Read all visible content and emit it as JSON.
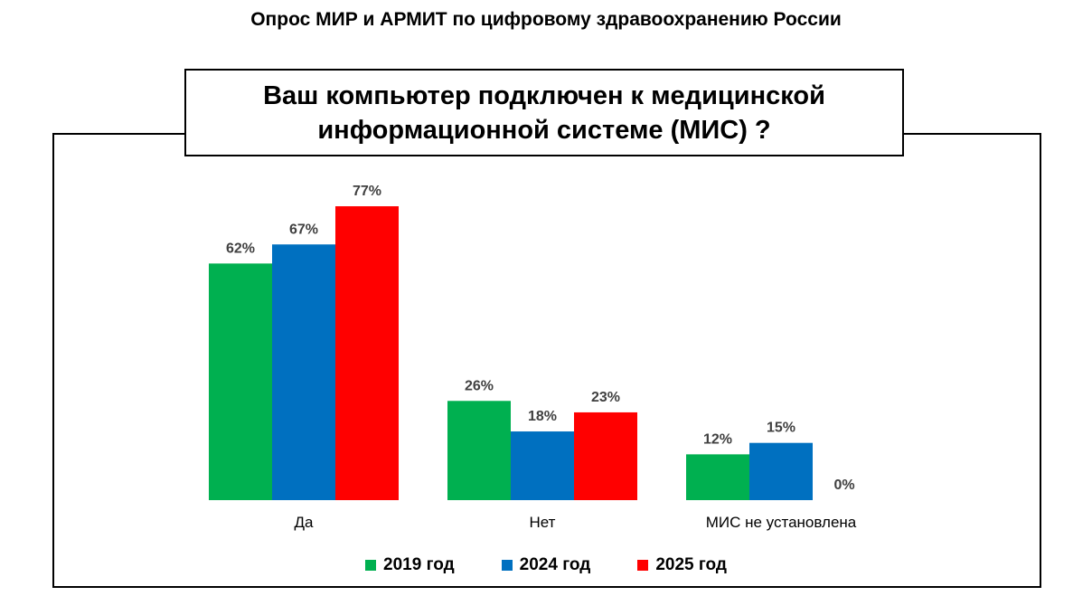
{
  "page_title": "Опрос МИР и АРМИТ по цифровому здравоохранению России",
  "chart_data": {
    "type": "bar",
    "title": "Ваш компьютер подключен к медицинской информационной системе (МИС) ?",
    "categories": [
      "Да",
      "Нет",
      "МИС не установлена"
    ],
    "series": [
      {
        "name": "2019 год",
        "color": "#00B050",
        "values": [
          62,
          26,
          12
        ],
        "labels": [
          "62%",
          "26%",
          "12%"
        ]
      },
      {
        "name": "2024 год",
        "color": "#0070C0",
        "values": [
          67,
          18,
          15
        ],
        "labels": [
          "67%",
          "18%",
          "15%"
        ]
      },
      {
        "name": "2025 год",
        "color": "#FF0000",
        "values": [
          77,
          23,
          0
        ],
        "labels": [
          "77%",
          "23%",
          "0%"
        ]
      }
    ],
    "unit": "%",
    "ylim": [
      0,
      77
    ],
    "grid": false,
    "legend_position": "bottom"
  }
}
